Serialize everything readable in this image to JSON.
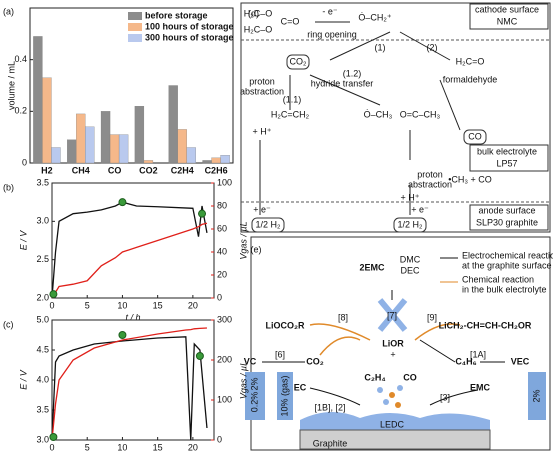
{
  "chart_data": [
    {
      "type": "bar",
      "label": "(a)",
      "ylabel": "volume / mL",
      "categories": [
        "H2",
        "CH4",
        "CO",
        "CO2",
        "C2H4",
        "C2H6"
      ],
      "series": [
        {
          "name": "before storage",
          "color": "#8c8c8c",
          "values": [
            0.49,
            0.09,
            0.2,
            0.22,
            0.3,
            0.01
          ]
        },
        {
          "name": "100 hours of storage",
          "color": "#f5b88a",
          "values": [
            0.33,
            0.19,
            0.11,
            0.01,
            0.13,
            0.02
          ]
        },
        {
          "name": "300 hours of storage",
          "color": "#b9c9ee",
          "values": [
            0.06,
            0.14,
            0.11,
            0,
            0.06,
            0.03
          ]
        }
      ],
      "ylim": [
        0,
        0.6
      ],
      "yticks": [
        0,
        0.2,
        0.4
      ],
      "legend": "upper right"
    },
    {
      "type": "line",
      "label": "(b)",
      "xlabel": "t / h",
      "ylabel": "E / V",
      "y2label": "Vgas / µL",
      "x": [
        0,
        0.5,
        1,
        3,
        5,
        7,
        9,
        10,
        12,
        15,
        20,
        20.8,
        21.3,
        22
      ],
      "series": [
        {
          "color": "#111111",
          "values": [
            2.0,
            2.6,
            3.0,
            3.1,
            3.12,
            3.15,
            3.2,
            3.25,
            3.2,
            3.19,
            3.17,
            2.8,
            3.2,
            2.85
          ]
        },
        {
          "color": "#e0201a",
          "axis": "y2",
          "values": [
            0,
            5,
            10,
            12,
            15,
            28,
            35,
            40,
            44,
            50,
            60,
            62,
            64,
            65
          ]
        }
      ],
      "points": {
        "color": "#3a9a3a",
        "x": [
          0.2,
          10,
          21.3
        ],
        "y": [
          2.05,
          3.25,
          3.1
        ]
      },
      "xlim": [
        0,
        23
      ],
      "xticks": [
        0,
        5,
        10,
        15,
        20
      ],
      "ylim": [
        2.0,
        3.5
      ],
      "yticks": [
        {
          "value": 2.0,
          "label": "2.0"
        },
        {
          "value": 2.5,
          "label": "2.5"
        },
        {
          "value": 3.0,
          "label": "3.0"
        },
        {
          "value": 3.5,
          "label": "3.5"
        }
      ],
      "y2lim": [
        0,
        100
      ],
      "y2ticks": [
        0,
        20,
        40,
        60,
        80,
        100
      ]
    },
    {
      "type": "line",
      "label": "(c)",
      "xlabel": "t / h",
      "ylabel": "E / V",
      "y2label": "Vgas / µL",
      "x": [
        0,
        0.5,
        1,
        3,
        6,
        10,
        15,
        19,
        19.7,
        20.2,
        21,
        22
      ],
      "series": [
        {
          "color": "#111111",
          "values": [
            3.0,
            4.3,
            4.4,
            4.5,
            4.6,
            4.65,
            4.7,
            4.72,
            3.0,
            4.6,
            4.5,
            3.2
          ]
        },
        {
          "color": "#e0201a",
          "axis": "y2",
          "values": [
            0,
            90,
            150,
            200,
            230,
            250,
            265,
            275,
            276,
            278,
            279,
            280
          ]
        }
      ],
      "points": {
        "color": "#3a9a3a",
        "x": [
          0.2,
          10,
          21
        ],
        "y": [
          3.05,
          4.75,
          4.4
        ]
      },
      "xlim": [
        0,
        23
      ],
      "xticks": [
        0,
        5,
        10,
        15,
        20
      ],
      "ylim": [
        3.0,
        5.0
      ],
      "yticks": [
        {
          "value": 3.0,
          "label": "3.0"
        },
        {
          "value": 3.5,
          "label": "3.5"
        },
        {
          "value": 4.0,
          "label": "4.0"
        },
        {
          "value": 4.5,
          "label": "4.5"
        },
        {
          "value": 5.0,
          "label": "5.0"
        }
      ],
      "y2lim": [
        0,
        300
      ],
      "y2ticks": [
        0,
        100,
        200,
        300
      ]
    }
  ],
  "diagram_d": {
    "texts": [
      "(d)",
      "cathode surface",
      "NMC",
      "- e⁻",
      "ring opening",
      "(1)",
      "(2)",
      "CO₂",
      "proton",
      "abstraction",
      "(1.1)",
      "(1.2)",
      "hydride transfer",
      "formaldehyde",
      "H₂C=O",
      "+ H⁺",
      "bulk electrolyte",
      "LP57",
      "CO",
      "proton",
      "abstraction",
      "•CH₃ + CO",
      "+ H⁺",
      "+ e⁻",
      "+ e⁻",
      "1/2 H₂",
      "1/2 H₂",
      "anode surface",
      "SLP30 graphite",
      "H₂C–O",
      "H₂C–O",
      "C=O",
      "Ȯ–CH₂⁺",
      "H₂C=CH₂",
      "Ȯ–CH₃",
      "O=C–CH₃"
    ]
  },
  "diagram_e": {
    "texts": [
      "(e)",
      "2EMC",
      "DMC",
      "DEC",
      "Electrochemical reaction",
      "at the graphite surface",
      "Chemical reaction",
      "in the bulk electrolyte",
      "[7]",
      "LiOCO₂R",
      "[8]",
      "LiOR",
      "+",
      "[9]",
      "LiCH₂-CH=CH-CH₂OR",
      "VC",
      "[6]",
      "CO₂",
      "[1A]",
      "VEC",
      "C₄H₆",
      "EC",
      "[1B], [2]",
      "C₂H₄",
      "CO",
      "[3]",
      "EMC",
      "2%",
      "0.2%",
      "10% (gas)",
      "2%",
      "LEDC",
      "Graphite"
    ]
  }
}
